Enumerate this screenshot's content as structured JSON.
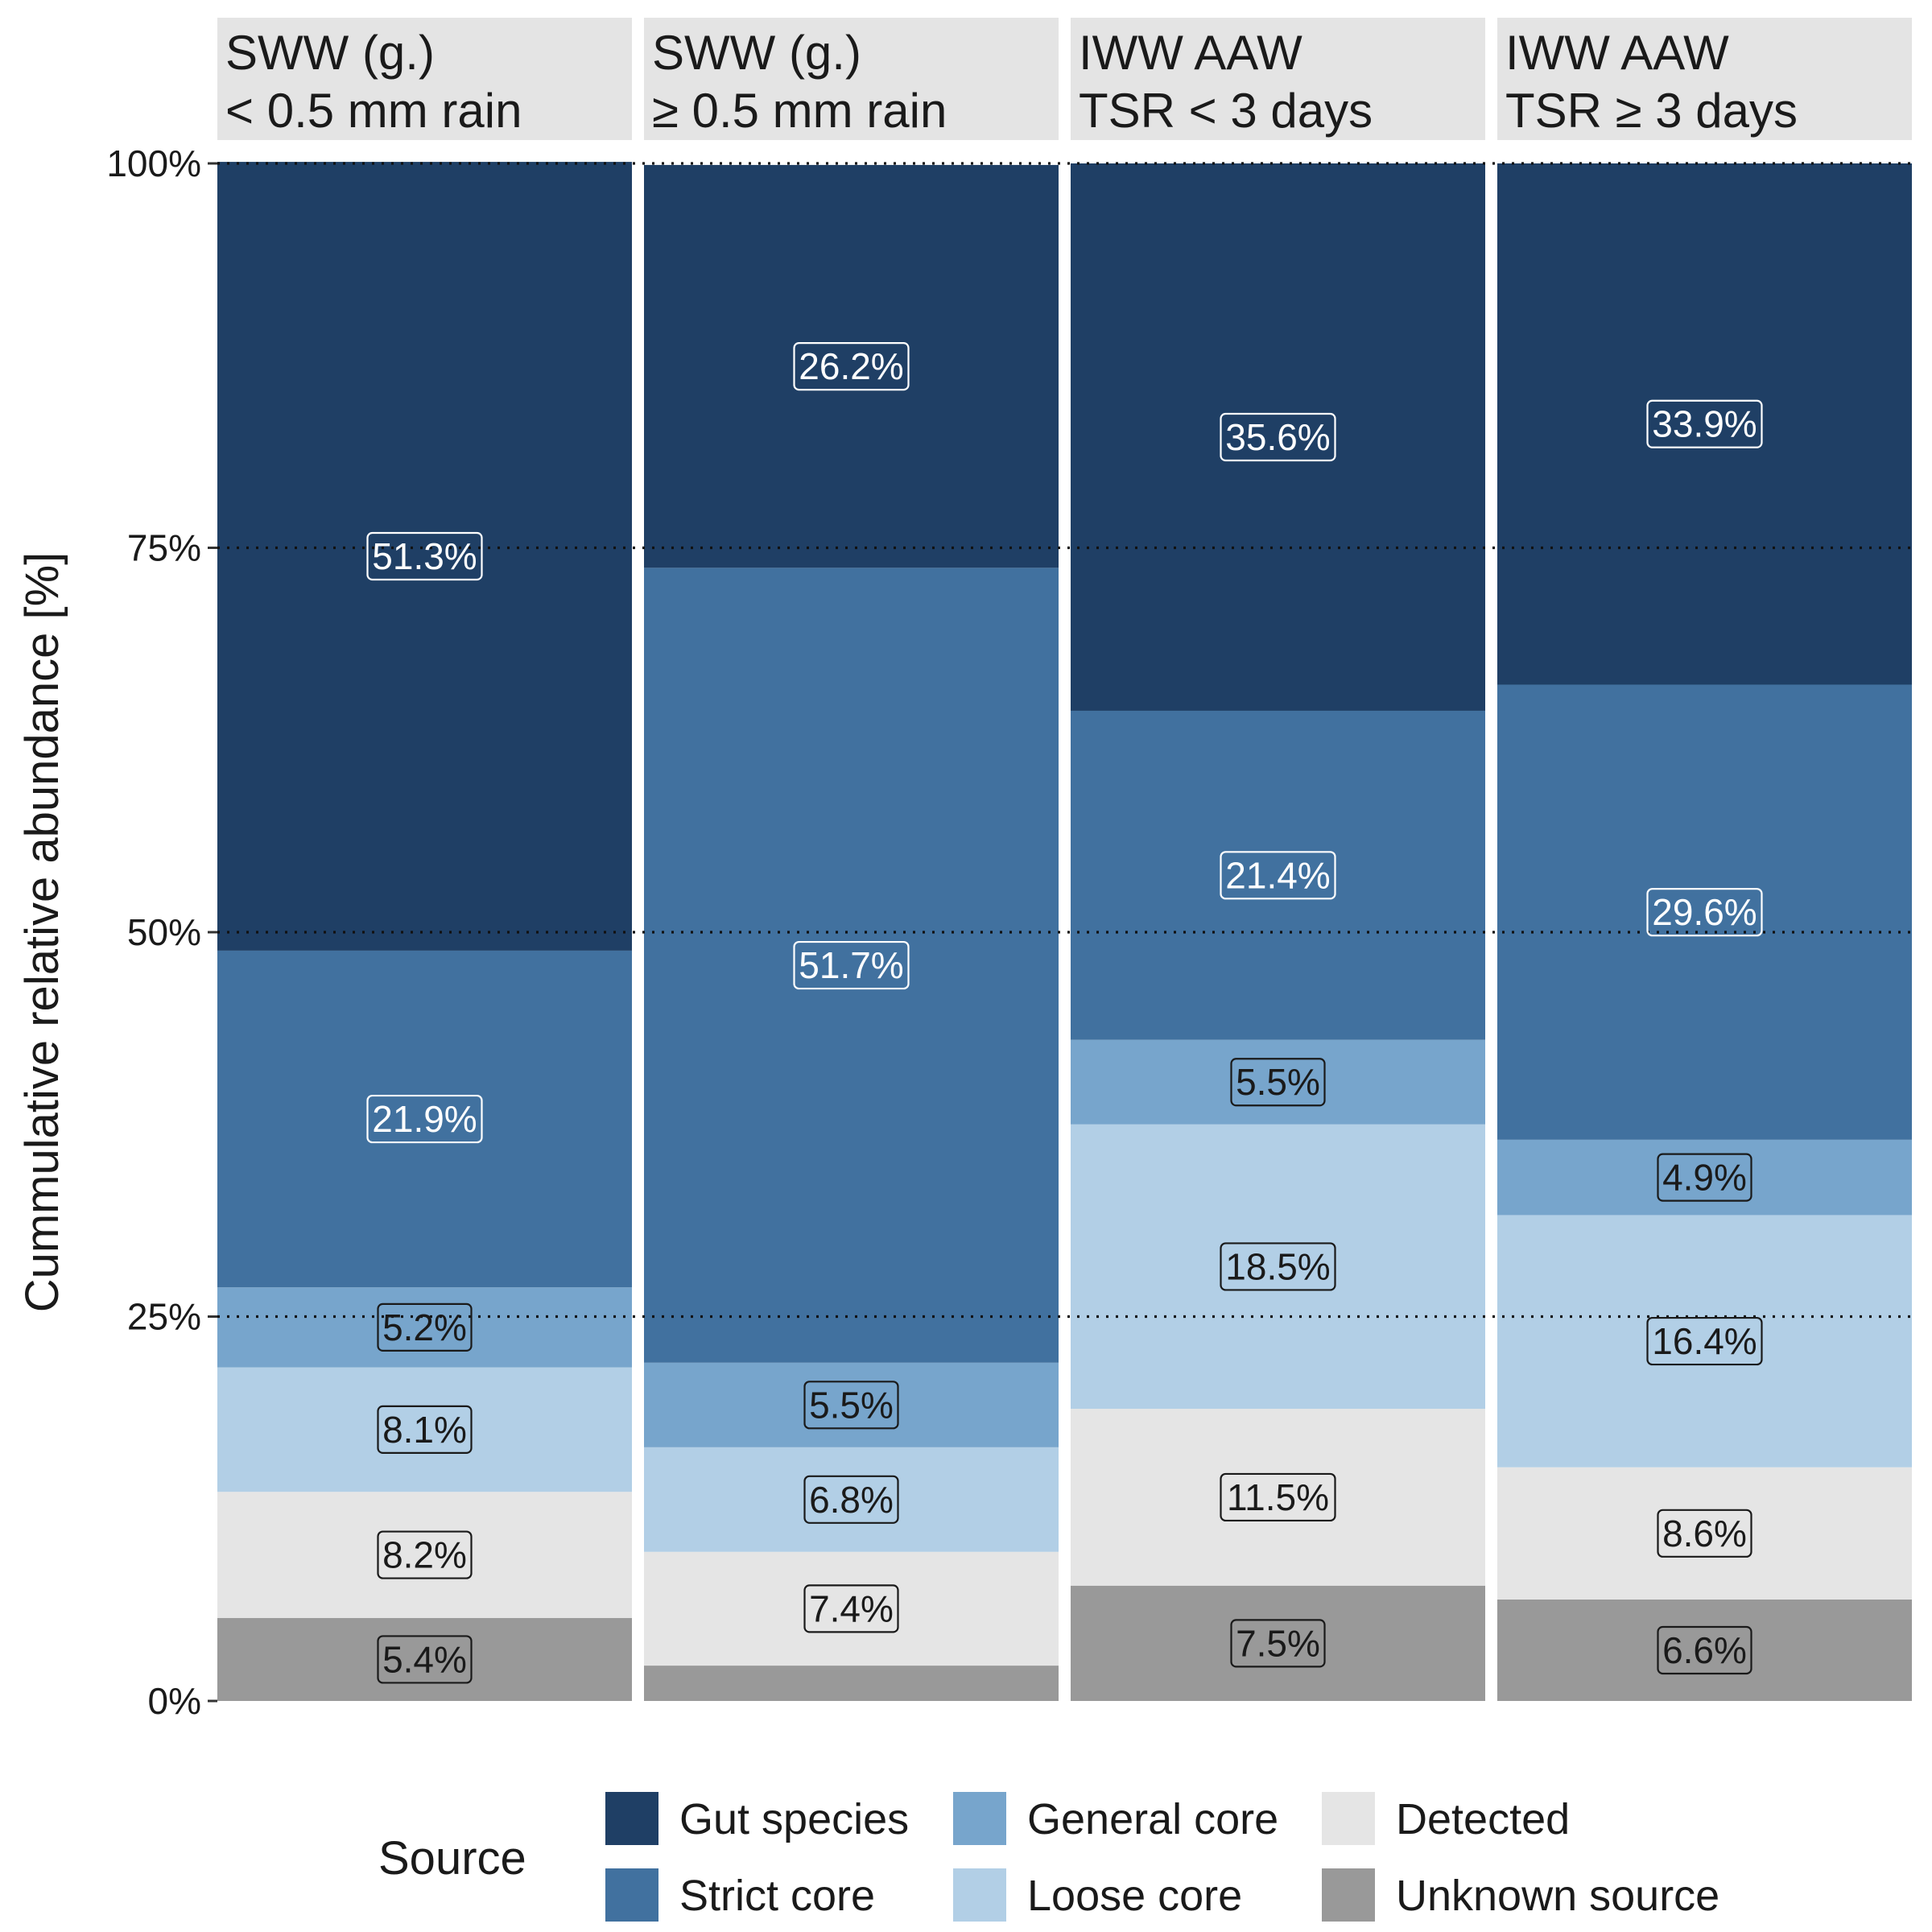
{
  "chart_data": {
    "type": "bar",
    "stacked": true,
    "ylabel": "Cummulative relative abundance [%]",
    "ylim": [
      0,
      100
    ],
    "yticks": [
      "0%",
      "25%",
      "50%",
      "75%",
      "100%"
    ],
    "ytick_values": [
      0,
      25,
      50,
      75,
      100
    ],
    "gridlines": [
      25,
      50,
      75,
      100
    ],
    "panels": [
      {
        "line1": "SWW (g.)",
        "line2": "< 0.5 mm rain"
      },
      {
        "line1": "SWW (g.)",
        "line2": "≥ 0.5 mm rain"
      },
      {
        "line1": "IWW AAW",
        "line2": "TSR < 3 days"
      },
      {
        "line1": "IWW AAW",
        "line2": "TSR ≥ 3 days"
      }
    ],
    "series": [
      {
        "name": "Unknown source",
        "color": "#999999",
        "values": [
          5.4,
          2.3,
          7.5,
          6.6
        ],
        "labels": [
          "5.4%",
          "",
          "7.5%",
          "6.6%"
        ],
        "label_color": "dark"
      },
      {
        "name": "Detected",
        "color": "#e5e5e5",
        "values": [
          8.2,
          7.4,
          11.5,
          8.6
        ],
        "labels": [
          "8.2%",
          "7.4%",
          "11.5%",
          "8.6%"
        ],
        "label_color": "dark"
      },
      {
        "name": "Loose core",
        "color": "#b2cfe6",
        "values": [
          8.1,
          6.8,
          18.5,
          16.4
        ],
        "labels": [
          "8.1%",
          "6.8%",
          "18.5%",
          "16.4%"
        ],
        "label_color": "dark"
      },
      {
        "name": "General core",
        "color": "#77a5cc",
        "values": [
          5.2,
          5.5,
          5.5,
          4.9
        ],
        "labels": [
          "5.2%",
          "5.5%",
          "5.5%",
          "4.9%"
        ],
        "label_color": "dark"
      },
      {
        "name": "Strict core",
        "color": "#41719f",
        "values": [
          21.9,
          51.7,
          21.4,
          29.6
        ],
        "labels": [
          "21.9%",
          "51.7%",
          "21.4%",
          "29.6%"
        ],
        "label_color": "light"
      },
      {
        "name": "Gut species",
        "color": "#1f3f65",
        "values": [
          51.3,
          26.2,
          35.6,
          33.9
        ],
        "labels": [
          "51.3%",
          "26.2%",
          "35.6%",
          "33.9%"
        ],
        "label_color": "light"
      }
    ],
    "legend": {
      "title": "Source",
      "position": "bottom",
      "entries": [
        "Gut species",
        "Strict core",
        "General core",
        "Loose core",
        "Detected",
        "Unknown source"
      ]
    }
  }
}
